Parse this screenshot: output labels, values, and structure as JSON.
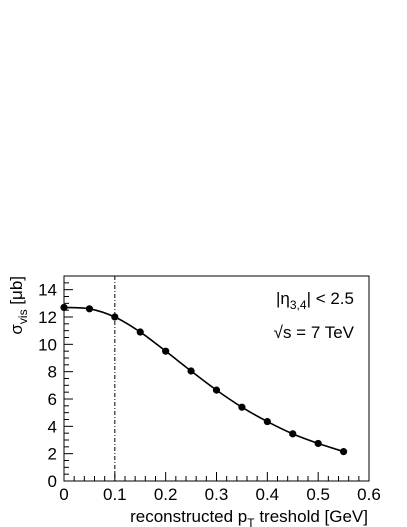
{
  "chart_data": {
    "type": "line",
    "xlabel": {
      "main": "reconstructed p",
      "sub": "T",
      "rest": " treshold [GeV]"
    },
    "ylabel": {
      "main": "σ",
      "sub": "vis",
      "rest": " [μb]"
    },
    "xlim": [
      0,
      0.6
    ],
    "ylim": [
      0,
      15
    ],
    "x_ticks": [
      0,
      0.1,
      0.2,
      0.3,
      0.4,
      0.5,
      0.6
    ],
    "x_tick_labels": [
      "0",
      "0.1",
      "0.2",
      "0.3",
      "0.4",
      "0.5",
      "0.6"
    ],
    "y_ticks": [
      0,
      2,
      4,
      6,
      8,
      10,
      12,
      14
    ],
    "y_tick_labels": [
      "0",
      "2",
      "4",
      "6",
      "8",
      "10",
      "12",
      "14"
    ],
    "grid": false,
    "reference_line": {
      "x": 0.1,
      "style": "dash-dot"
    },
    "annotations": [
      {
        "main": "|η",
        "sub": "3,4",
        "rest": "| < 2.5"
      },
      {
        "main": "√s = 7 TeV"
      }
    ],
    "series": [
      {
        "x": [
          0,
          0.05,
          0.1,
          0.15,
          0.2,
          0.25,
          0.3,
          0.35,
          0.4,
          0.45,
          0.5,
          0.55
        ],
        "values": [
          12.7,
          12.6,
          12.0,
          10.9,
          9.5,
          8.05,
          6.65,
          5.4,
          4.35,
          3.45,
          2.75,
          2.15
        ]
      }
    ]
  }
}
